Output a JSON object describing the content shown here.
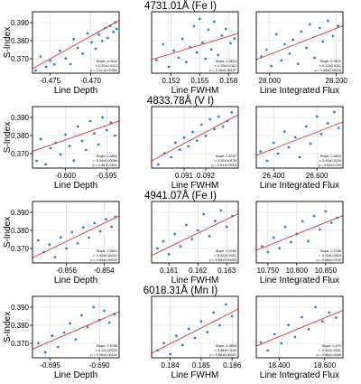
{
  "figure": {
    "ylabel": "S-Index",
    "xlabels": [
      "Line Depth",
      "Line FWHM",
      "Line Integrated Flux"
    ],
    "colors": {
      "point": "#2a86c4",
      "fit": "#e0313a",
      "grid": "#d8d8d8"
    },
    "y_ticks": [
      "0.370",
      "0.380",
      "0.390"
    ],
    "ylim": [
      0.362,
      0.396
    ]
  },
  "chart_data": [
    {
      "type": "scatter",
      "row_title": "4731.01Å (Fe I)",
      "panels": [
        {
          "xlabel": "Line Depth",
          "xlim": [
            -0.4772,
            -0.4665
          ],
          "xticks": [
            -0.475,
            -0.47
          ],
          "xtick_labels": [
            "-0.475",
            "-0.470"
          ],
          "stats": [
            "Slope: 0.0642",
            "r: 0.52±0.0112",
            "p = 0.1×10.00384"
          ],
          "fit": [
            [
              -0.4772,
              0.3645
            ],
            [
              -0.4665,
              0.3912
            ]
          ],
          "x": [
            -0.4768,
            -0.4762,
            -0.4755,
            -0.475,
            -0.4745,
            -0.4738,
            -0.4731,
            -0.4725,
            -0.4721,
            -0.4716,
            -0.471,
            -0.4704,
            -0.4699,
            -0.4694,
            -0.469,
            -0.4686,
            -0.4682,
            -0.4679,
            -0.4676,
            -0.4672,
            -0.467,
            -0.4668
          ],
          "y": [
            0.3635,
            0.3712,
            0.3655,
            0.369,
            0.3668,
            0.3745,
            0.3702,
            0.367,
            0.3808,
            0.376,
            0.3728,
            0.384,
            0.379,
            0.3755,
            0.3833,
            0.3798,
            0.387,
            0.3815,
            0.3882,
            0.3848,
            0.3901,
            0.3865
          ]
        },
        {
          "xlabel": "Line FWHM",
          "xlim": [
            0.15,
            0.159
          ],
          "xticks": [
            0.152,
            0.155,
            0.158
          ],
          "xtick_labels": [
            "0.152",
            "0.155",
            "0.158"
          ],
          "stats": [
            "Slope: 0.3814",
            "r: 0.39±0.0112",
            "p = 0.46±0.00197"
          ],
          "fit": [
            [
              0.15,
              0.3695
            ],
            [
              0.159,
              0.384
            ]
          ],
          "x": [
            0.1505,
            0.1512,
            0.1518,
            0.1523,
            0.1528,
            0.1532,
            0.1536,
            0.154,
            0.1544,
            0.1547,
            0.155,
            0.1553,
            0.1556,
            0.1559,
            0.1562,
            0.1565,
            0.1569,
            0.1573,
            0.1577,
            0.1582,
            0.1586
          ],
          "y": [
            0.3692,
            0.378,
            0.3655,
            0.3745,
            0.3705,
            0.381,
            0.3682,
            0.3765,
            0.388,
            0.3735,
            0.392,
            0.379,
            0.37,
            0.386,
            0.3752,
            0.3905,
            0.372,
            0.3828,
            0.3865,
            0.3786,
            0.3812
          ]
        },
        {
          "xlabel": "Line Integrated Flux",
          "xlim": [
            27.96,
            28.22
          ],
          "xticks": [
            28.0,
            28.2
          ],
          "xtick_labels": [
            "28.000",
            "28.200"
          ],
          "stats": [
            "Slope: 0.3819",
            "r: 0.42±0.0112",
            "p = 0.58±0.00118"
          ],
          "fit": [
            [
              27.96,
              0.3695
            ],
            [
              28.22,
              0.3882
            ]
          ],
          "x": [
            27.975,
            27.99,
            28.005,
            28.02,
            28.035,
            28.045,
            28.06,
            28.07,
            28.085,
            28.095,
            28.11,
            28.12,
            28.135,
            28.15,
            28.16,
            28.175,
            28.19,
            28.205
          ],
          "y": [
            0.3712,
            0.375,
            0.366,
            0.3835,
            0.369,
            0.378,
            0.3728,
            0.3805,
            0.3672,
            0.385,
            0.376,
            0.389,
            0.3705,
            0.387,
            0.3795,
            0.391,
            0.3826,
            0.3882
          ]
        }
      ]
    },
    {
      "type": "scatter",
      "row_title": "4833.78Å (V I)",
      "panels": [
        {
          "xlabel": "Line Depth",
          "xlim": [
            -0.604,
            -0.5935
          ],
          "xticks": [
            -0.6,
            -0.595
          ],
          "xtick_labels": [
            "-0.600",
            "-0.595"
          ],
          "stats": [
            "Slope: 0.3804",
            "r: 0.34±0.00060",
            "p = 0.56±0.0141"
          ],
          "fit": [
            [
              -0.604,
              0.3712
            ],
            [
              -0.5935,
              0.388
            ]
          ],
          "x": [
            -0.6035,
            -0.603,
            -0.6024,
            -0.6018,
            -0.6012,
            -0.6006,
            -0.6,
            -0.5995,
            -0.599,
            -0.5985,
            -0.598,
            -0.5975,
            -0.597,
            -0.5965,
            -0.596,
            -0.5955,
            -0.595,
            -0.5945,
            -0.594
          ],
          "y": [
            0.366,
            0.378,
            0.364,
            0.373,
            0.376,
            0.3695,
            0.3805,
            0.3742,
            0.3662,
            0.385,
            0.377,
            0.372,
            0.388,
            0.3812,
            0.375,
            0.39,
            0.383,
            0.3872,
            0.38
          ]
        },
        {
          "xlabel": "Line FWHM",
          "xlim": [
            0.0895,
            0.0935
          ],
          "xticks": [
            0.091,
            0.092
          ],
          "xtick_labels": [
            "0.091",
            "0.092"
          ],
          "stats": [
            "Slope: 0.3767",
            "r: 0.32±0.0133",
            "p = 0.51±0.0015"
          ],
          "fit": [
            [
              0.0895,
              0.366
            ],
            [
              0.0935,
              0.3915
            ]
          ],
          "x": [
            0.0898,
            0.0901,
            0.0904,
            0.0906,
            0.0908,
            0.091,
            0.0912,
            0.0914,
            0.0916,
            0.0918,
            0.092,
            0.0922,
            0.0924,
            0.0926,
            0.0928,
            0.093,
            0.0932
          ],
          "y": [
            0.364,
            0.3702,
            0.368,
            0.376,
            0.3722,
            0.3788,
            0.374,
            0.382,
            0.3772,
            0.386,
            0.3798,
            0.389,
            0.3835,
            0.3905,
            0.385,
            0.388,
            0.3928
          ]
        },
        {
          "xlabel": "Line Integrated Flux",
          "xlim": [
            26.32,
            26.72
          ],
          "xticks": [
            26.4,
            26.6
          ],
          "xtick_labels": [
            "26.400",
            "26.600"
          ],
          "stats": [
            "Slope: 0.3603",
            "r: 0.40±0.0116",
            "p = 0.54±0.003"
          ],
          "fit": [
            [
              26.32,
              0.369
            ],
            [
              26.72,
              0.3875
            ]
          ],
          "x": [
            26.34,
            26.37,
            26.4,
            26.42,
            26.45,
            26.47,
            26.5,
            26.52,
            26.55,
            26.57,
            26.6,
            26.62,
            26.65,
            26.68,
            26.7
          ],
          "y": [
            0.3712,
            0.366,
            0.376,
            0.37,
            0.3822,
            0.3735,
            0.379,
            0.368,
            0.385,
            0.3755,
            0.3905,
            0.3808,
            0.3868,
            0.393,
            0.3842
          ]
        }
      ]
    },
    {
      "type": "scatter",
      "row_title": "4941.07Å (Fe I)",
      "panels": [
        {
          "xlabel": "Line Depth",
          "xlim": [
            -0.8578,
            -0.8532
          ],
          "xticks": [
            -0.856,
            -0.854
          ],
          "xtick_labels": [
            "-0.856",
            "-0.854"
          ],
          "stats": [
            "Slope: 0.3624",
            "r: 0.44±0.00012",
            "p = 0.64±0.00020"
          ],
          "fit": [
            [
              -0.8578,
              0.3648
            ],
            [
              -0.8532,
              0.388
            ]
          ],
          "x": [
            -0.8575,
            -0.8572,
            -0.8569,
            -0.8566,
            -0.8563,
            -0.856,
            -0.8557,
            -0.8554,
            -0.8551,
            -0.8548,
            -0.8545,
            -0.8542,
            -0.8539,
            -0.8536,
            -0.8534
          ],
          "y": [
            0.3745,
            0.368,
            0.3722,
            0.3652,
            0.3762,
            0.37,
            0.379,
            0.3728,
            0.3816,
            0.376,
            0.384,
            0.3795,
            0.3862,
            0.382,
            0.3875
          ]
        },
        {
          "xlabel": "Line FWHM",
          "xlim": [
            0.1604,
            0.1634
          ],
          "xticks": [
            0.161,
            0.162,
            0.163
          ],
          "xtick_labels": [
            "0.161",
            "0.162",
            "0.163"
          ],
          "stats": [
            "Slope: 0.3780",
            "r: 0.42±0.0261",
            "p = 0.58±0.00003"
          ],
          "fit": [
            [
              0.1604,
              0.3662
            ],
            [
              0.1634,
              0.3892
            ]
          ],
          "x": [
            0.1606,
            0.1608,
            0.161,
            0.1612,
            0.1614,
            0.1616,
            0.1618,
            0.162,
            0.1622,
            0.1624,
            0.1626,
            0.1628,
            0.163,
            0.1632
          ],
          "y": [
            0.37,
            0.374,
            0.3668,
            0.378,
            0.3712,
            0.383,
            0.3752,
            0.38,
            0.389,
            0.3768,
            0.3852,
            0.391,
            0.382,
            0.388
          ]
        },
        {
          "xlabel": "Line Integrated Flux",
          "xlim": [
            10.73,
            10.88
          ],
          "xticks": [
            10.75,
            10.8,
            10.85
          ],
          "xtick_labels": [
            "10.750",
            "10.800",
            "10.850"
          ],
          "stats": [
            "Slope: 0.3768",
            "r: 0.43±0.0018",
            "p = 0.58±0.0134"
          ],
          "fit": [
            [
              10.73,
              0.369
            ],
            [
              10.88,
              0.3882
            ]
          ],
          "x": [
            10.74,
            10.75,
            10.76,
            10.77,
            10.78,
            10.79,
            10.8,
            10.81,
            10.82,
            10.83,
            10.84,
            10.85,
            10.86,
            10.87
          ],
          "y": [
            0.3712,
            0.368,
            0.376,
            0.3702,
            0.382,
            0.3735,
            0.378,
            0.385,
            0.374,
            0.388,
            0.3805,
            0.3905,
            0.3842,
            0.387
          ]
        }
      ]
    },
    {
      "type": "scatter",
      "row_title": "6018.31Å (Mn I)",
      "panels": [
        {
          "xlabel": "Line Depth",
          "xlim": [
            -0.6968,
            -0.688
          ],
          "xticks": [
            -0.695,
            -0.69
          ],
          "xtick_labels": [
            "-0.695",
            "-0.690"
          ],
          "stats": [
            "Slope: 0.3786",
            "r: 0.1x0.00720",
            "p = 0.18±0.00101"
          ],
          "fit": [
            [
              -0.6968,
              0.3668
            ],
            [
              -0.688,
              0.3875
            ]
          ],
          "x": [
            -0.6962,
            -0.6955,
            -0.6948,
            -0.6942,
            -0.6936,
            -0.693,
            -0.6924,
            -0.6918,
            -0.6912,
            -0.6906,
            -0.69,
            -0.6895,
            -0.689,
            -0.6885
          ],
          "y": [
            0.37,
            0.365,
            0.3742,
            0.368,
            0.376,
            0.381,
            0.3722,
            0.3855,
            0.379,
            0.39,
            0.383,
            0.388,
            0.3815,
            0.3862
          ]
        },
        {
          "xlabel": "Line FWHM",
          "xlim": [
            0.1834,
            0.1862
          ],
          "xticks": [
            0.184,
            0.185,
            0.186
          ],
          "xtick_labels": [
            "0.184",
            "0.185",
            "0.186"
          ],
          "stats": [
            "Slope: 0.3803",
            "r: 0.48±0.0153",
            "p = 0.58±0.00021"
          ],
          "fit": [
            [
              0.1834,
              0.3645
            ],
            [
              0.1862,
              0.389
            ]
          ],
          "x": [
            0.1836,
            0.1838,
            0.184,
            0.1842,
            0.1844,
            0.1846,
            0.1848,
            0.185,
            0.1852,
            0.1854,
            0.1856,
            0.1858,
            0.186
          ],
          "y": [
            0.3662,
            0.3702,
            0.364,
            0.3742,
            0.369,
            0.378,
            0.373,
            0.3822,
            0.3762,
            0.387,
            0.38,
            0.3915,
            0.385
          ]
        },
        {
          "xlabel": "Line Integrated Flux",
          "xlim": [
            18.3,
            18.68
          ],
          "xticks": [
            18.4,
            18.6
          ],
          "xtick_labels": [
            "18.400",
            "18.600"
          ],
          "stats": [
            "Slope: 0.379",
            "r: 0.44±0.0252",
            "p = 0.58±0.0006"
          ],
          "fit": [
            [
              18.3,
              0.3685
            ],
            [
              18.68,
              0.3882
            ]
          ],
          "x": [
            18.32,
            18.35,
            18.38,
            18.41,
            18.44,
            18.47,
            18.5,
            18.53,
            18.56,
            18.59,
            18.62,
            18.65
          ],
          "y": [
            0.3705,
            0.366,
            0.375,
            0.37,
            0.3802,
            0.3735,
            0.3845,
            0.3778,
            0.39,
            0.3822,
            0.387,
            0.3842
          ]
        }
      ]
    }
  ]
}
